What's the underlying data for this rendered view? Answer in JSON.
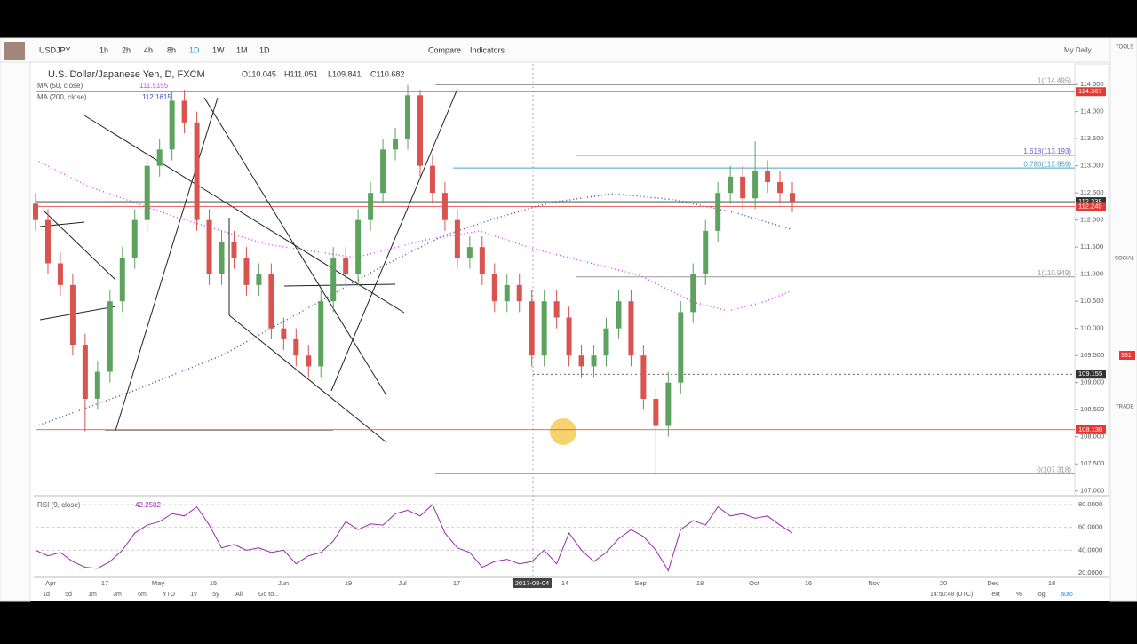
{
  "toolbar": {
    "symbol": "USDJPY",
    "intervals": [
      "1h",
      "2h",
      "4h",
      "8h",
      "1D",
      "1W",
      "1M",
      "1D"
    ],
    "compare": "Compare",
    "indicators": "Indicators",
    "layout": "My Daily"
  },
  "legend": {
    "title": "U.S. Dollar/Japanese Yen, D, FXCM",
    "open": "O110.045",
    "high": "H111.051",
    "low": "L109.841",
    "close": "C110.682",
    "ma50": "MA (50, close)",
    "ma50_value": "111.5155",
    "ma200": "MA (200, close)",
    "ma200_value": "112.1615"
  },
  "chart_data": [
    {
      "type": "candlestick",
      "up_color": "#5da35f",
      "down_color": "#d9534f",
      "ylim": [
        106.93,
        114.83
      ],
      "yticks": [
        {
          "value": 107,
          "label": "107.000"
        },
        {
          "value": 107.5,
          "label": "107.500"
        },
        {
          "value": 108,
          "label": "108.000"
        },
        {
          "value": 108.5,
          "label": "108.500"
        },
        {
          "value": 109,
          "label": "109.000"
        },
        {
          "value": 109.5,
          "label": "109.500"
        },
        {
          "value": 110,
          "label": "110.000"
        },
        {
          "value": 110.5,
          "label": "110.500"
        },
        {
          "value": 111,
          "label": "111.000"
        },
        {
          "value": 111.5,
          "label": "111.500"
        },
        {
          "value": 112,
          "label": "112.000"
        },
        {
          "value": 112.5,
          "label": "112.500"
        },
        {
          "value": 113,
          "label": "113.000"
        },
        {
          "value": 113.5,
          "label": "113.500"
        },
        {
          "value": 114,
          "label": "114.000"
        },
        {
          "value": 114.5,
          "label": "114.500"
        }
      ],
      "open": [
        112.3,
        112.0,
        111.2,
        110.8,
        109.7,
        108.7,
        109.2,
        110.5,
        111.3,
        112.0,
        113.0,
        113.3,
        114.2,
        113.8,
        112.0,
        111.0,
        111.6,
        111.3,
        110.8,
        111.0,
        110.0,
        109.8,
        109.5,
        109.3,
        110.5,
        111.3,
        111.0,
        112.0,
        112.5,
        113.3,
        113.5,
        114.3,
        113.0,
        112.5,
        112.0,
        111.3,
        111.5,
        111.0,
        110.5,
        110.8,
        110.5,
        109.5,
        110.5,
        110.2,
        109.5,
        109.3,
        109.5,
        110.0,
        110.5,
        109.5,
        108.7,
        108.2,
        109.0,
        110.3,
        111.0,
        111.8,
        112.5,
        112.8,
        112.4,
        112.9,
        112.7,
        112.5
      ],
      "high": [
        112.5,
        112.2,
        111.4,
        111.0,
        109.9,
        109.4,
        110.7,
        111.5,
        112.2,
        113.2,
        113.5,
        114.37,
        114.4,
        114.0,
        112.2,
        111.8,
        111.8,
        111.5,
        111.2,
        111.2,
        110.2,
        110.0,
        109.7,
        110.7,
        111.5,
        111.5,
        112.2,
        112.7,
        113.5,
        113.7,
        114.49,
        114.4,
        113.2,
        112.7,
        112.2,
        111.7,
        111.7,
        111.2,
        111.0,
        111.0,
        110.7,
        110.7,
        110.7,
        110.4,
        109.7,
        109.7,
        110.2,
        110.7,
        110.7,
        109.7,
        108.9,
        109.2,
        110.5,
        111.2,
        112.0,
        112.7,
        113.0,
        113.0,
        113.45,
        113.1,
        112.9,
        112.7
      ],
      "low": [
        111.8,
        111.0,
        110.6,
        109.5,
        108.1,
        108.5,
        109.0,
        110.3,
        111.1,
        111.8,
        112.8,
        113.1,
        113.6,
        111.8,
        110.8,
        110.8,
        111.1,
        110.6,
        110.6,
        109.8,
        109.6,
        109.3,
        109.1,
        109.1,
        110.3,
        110.8,
        110.8,
        111.8,
        112.3,
        113.1,
        113.3,
        112.8,
        112.3,
        111.8,
        111.1,
        111.1,
        110.8,
        110.3,
        110.3,
        110.3,
        109.3,
        109.3,
        110.0,
        109.3,
        109.1,
        109.1,
        109.3,
        109.8,
        109.3,
        108.5,
        107.32,
        108.0,
        108.8,
        110.1,
        110.8,
        111.6,
        112.3,
        112.2,
        112.2,
        112.5,
        112.3,
        112.14
      ],
      "close": [
        112.0,
        111.2,
        110.8,
        109.7,
        108.7,
        109.2,
        110.5,
        111.3,
        112.0,
        113.0,
        113.3,
        114.2,
        113.8,
        112.0,
        111.0,
        111.6,
        111.3,
        110.8,
        111.0,
        110.0,
        109.8,
        109.5,
        109.3,
        110.5,
        111.3,
        111.0,
        112.0,
        112.5,
        113.3,
        113.5,
        114.3,
        113.0,
        112.5,
        112.0,
        111.3,
        111.5,
        111.0,
        110.5,
        110.8,
        110.5,
        109.5,
        110.5,
        110.2,
        109.5,
        109.3,
        109.5,
        110.0,
        110.5,
        109.5,
        108.7,
        108.2,
        109.0,
        110.3,
        111.0,
        111.8,
        112.5,
        112.8,
        112.4,
        112.9,
        112.7,
        112.5,
        112.34
      ],
      "price_tags": [
        {
          "value": 114.367,
          "label": "114.367",
          "color": "#e53935"
        },
        {
          "value": 112.338,
          "label": "112.338",
          "color": "#333333"
        },
        {
          "value": 112.249,
          "label": "112.249",
          "color": "#e53935"
        },
        {
          "value": 109.155,
          "label": "109.155",
          "color": "#333333"
        },
        {
          "value": 108.13,
          "label": "108.130",
          "color": "#e53935"
        }
      ],
      "fib_levels": [
        {
          "value": 114.495,
          "label": "1(114.495)",
          "color": "#999999"
        },
        {
          "value": 113.193,
          "label": "1.618(113.193)",
          "color": "#6a5acd"
        },
        {
          "value": 112.959,
          "label": "0.786(112.959)",
          "color": "#4aa3c8"
        },
        {
          "value": 110.949,
          "label": "1(110.949)",
          "color": "#999999"
        },
        {
          "value": 107.318,
          "label": "0(107.318)",
          "color": "#999999"
        }
      ]
    },
    {
      "type": "line",
      "title": "RSI (9, close)",
      "value_label": "42.2502",
      "color": "#9c27b0",
      "ylim": [
        16.1,
        86.2
      ],
      "yticks": [
        {
          "value": 80,
          "label": "80.0000"
        },
        {
          "value": 60,
          "label": "60.0000"
        },
        {
          "value": 40,
          "label": "40.0000"
        },
        {
          "value": 20,
          "label": "20.0000"
        }
      ],
      "values": [
        40,
        35,
        38,
        30,
        25,
        24,
        30,
        40,
        55,
        62,
        65,
        72,
        70,
        78,
        62,
        42,
        45,
        40,
        42,
        38,
        40,
        28,
        35,
        38,
        48,
        65,
        58,
        63,
        62,
        72,
        75,
        70,
        80,
        55,
        42,
        38,
        25,
        30,
        32,
        28,
        30,
        40,
        28,
        55,
        40,
        30,
        38,
        50,
        58,
        52,
        40,
        22,
        58,
        66,
        62,
        78,
        70,
        72,
        68,
        70,
        62,
        55
      ]
    }
  ],
  "time_axis": [
    "Apr",
    "17",
    "May",
    "15",
    "Jun",
    "19",
    "Jul",
    "17",
    "2017-08-04",
    "14",
    "Sep",
    "18",
    "Oct",
    "16",
    "Nov",
    "20",
    "Dec",
    "18"
  ],
  "footer": {
    "ranges": [
      "1d",
      "5d",
      "1m",
      "3m",
      "6m",
      "YTD",
      "1y",
      "5y",
      "All"
    ],
    "goto": "Go to...",
    "time": "14:50:48 (UTC)",
    "options": [
      "ext",
      "%",
      "log",
      "auto"
    ]
  },
  "sidebar": {
    "tools": "TOOLS",
    "social": "SOCIAL",
    "trade": "TRADE",
    "badge": "381"
  }
}
